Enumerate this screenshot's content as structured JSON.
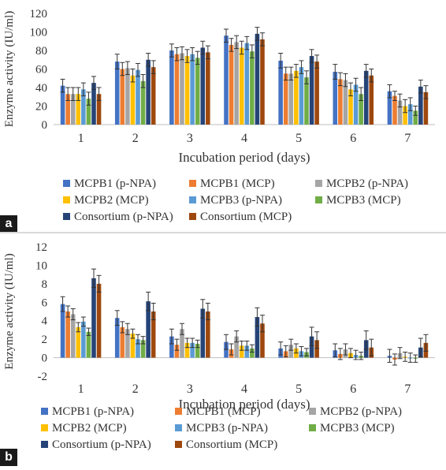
{
  "colors": {
    "MCPB1 (p-NPA)": "#4472c4",
    "MCPB1 (MCP)": "#ed7d31",
    "MCPB2 (p-NPA)": "#a5a5a5",
    "MCPB2 (MCP)": "#ffc000",
    "MCPB3 (p-NPA)": "#5b9bd5",
    "MCPB3 (MCP)": "#70ad47",
    "Consortium (p-NPA)": "#264478",
    "Consortium (MCP)": "#9e480e"
  },
  "chart_data": [
    {
      "panel_label": "a",
      "type": "bar",
      "xlabel": "Incubation period (days)",
      "ylabel": "Enzyme activity (IU/ml)",
      "ylim": [
        0,
        120
      ],
      "yticks": [
        "0",
        "20",
        "40",
        "60",
        "80",
        "100",
        "120"
      ],
      "categories": [
        "1",
        "2",
        "3",
        "4",
        "5",
        "6",
        "7"
      ],
      "grid": false,
      "legend_position": "bottom",
      "series": [
        {
          "name": "MCPB1 (p-NPA)",
          "values": [
            42,
            68,
            80,
            96,
            69,
            57,
            36
          ],
          "errors": [
            7,
            8,
            7,
            7,
            8,
            8,
            7
          ]
        },
        {
          "name": "MCPB1 (MCP)",
          "values": [
            33,
            60,
            76,
            86,
            55,
            49,
            31
          ],
          "errors": [
            7,
            7,
            7,
            7,
            7,
            7,
            5
          ]
        },
        {
          "name": "MCPB2 (p-NPA)",
          "values": [
            33,
            61,
            77,
            89,
            55,
            48,
            26
          ],
          "errors": [
            7,
            7,
            7,
            7,
            7,
            7,
            7
          ]
        },
        {
          "name": "MCPB2 (MCP)",
          "values": [
            33,
            53,
            74,
            83,
            58,
            38,
            20
          ],
          "errors": [
            7,
            7,
            7,
            7,
            7,
            7,
            7
          ]
        },
        {
          "name": "MCPB3 (p-NPA)",
          "values": [
            38,
            59,
            76,
            88,
            62,
            43,
            22
          ],
          "errors": [
            7,
            7,
            7,
            7,
            7,
            7,
            7
          ]
        },
        {
          "name": "MCPB3 (MCP)",
          "values": [
            28,
            47,
            72,
            79,
            51,
            33,
            15
          ],
          "errors": [
            7,
            7,
            7,
            7,
            7,
            7,
            5
          ]
        },
        {
          "name": "Consortium (p-NPA)",
          "values": [
            45,
            70,
            83,
            98,
            74,
            58,
            41
          ],
          "errors": [
            7,
            7,
            7,
            7,
            7,
            7,
            7
          ]
        },
        {
          "name": "Consortium (MCP)",
          "values": [
            33,
            62,
            78,
            92,
            68,
            53,
            35
          ],
          "errors": [
            7,
            7,
            7,
            7,
            7,
            7,
            7
          ]
        }
      ]
    },
    {
      "panel_label": "b",
      "type": "bar",
      "xlabel": "Incubation period (days)",
      "ylabel": "Enzyme activity (IU/ml)",
      "ylim": [
        -2,
        12
      ],
      "yticks": [
        "-2",
        "0",
        "2",
        "4",
        "6",
        "8",
        "10",
        "12"
      ],
      "categories": [
        "1",
        "2",
        "3",
        "4",
        "5",
        "6",
        "7"
      ],
      "grid": false,
      "legend_position": "bottom",
      "series": [
        {
          "name": "MCPB1 (p-NPA)",
          "values": [
            5.8,
            4.3,
            2.3,
            1.7,
            1.0,
            0.8,
            0.2
          ],
          "errors": [
            0.8,
            0.8,
            0.8,
            0.8,
            0.7,
            0.7,
            0.7
          ]
        },
        {
          "name": "MCPB1 (MCP)",
          "values": [
            5.0,
            3.3,
            1.4,
            0.9,
            0.7,
            0.4,
            -0.2
          ],
          "errors": [
            0.6,
            0.6,
            0.6,
            0.6,
            0.6,
            0.6,
            0.6
          ]
        },
        {
          "name": "MCPB2 (p-NPA)",
          "values": [
            4.7,
            3.1,
            3.1,
            2.3,
            1.4,
            0.9,
            0.5
          ],
          "errors": [
            0.6,
            0.6,
            0.6,
            0.6,
            0.6,
            0.6,
            0.6
          ]
        },
        {
          "name": "MCPB2 (MCP)",
          "values": [
            3.3,
            2.6,
            1.6,
            1.3,
            1.0,
            0.5,
            0.1
          ],
          "errors": [
            0.5,
            0.5,
            0.5,
            0.5,
            0.5,
            0.5,
            0.5
          ]
        },
        {
          "name": "MCPB3 (p-NPA)",
          "values": [
            3.9,
            2.0,
            1.6,
            1.3,
            0.7,
            0.3,
            0.0
          ],
          "errors": [
            0.5,
            0.5,
            0.5,
            0.5,
            0.5,
            0.5,
            0.5
          ]
        },
        {
          "name": "MCPB3 (MCP)",
          "values": [
            2.8,
            1.9,
            1.5,
            1.0,
            0.6,
            0.2,
            -0.1
          ],
          "errors": [
            0.4,
            0.4,
            0.4,
            0.4,
            0.4,
            0.4,
            0.4
          ]
        },
        {
          "name": "Consortium (p-NPA)",
          "values": [
            8.6,
            6.1,
            5.3,
            4.4,
            2.3,
            1.9,
            1.1
          ],
          "errors": [
            1.0,
            1.0,
            1.0,
            1.0,
            1.0,
            1.0,
            1.0
          ]
        },
        {
          "name": "Consortium (MCP)",
          "values": [
            8.0,
            5.0,
            5.0,
            3.7,
            1.9,
            1.1,
            1.6
          ],
          "errors": [
            0.9,
            0.9,
            0.9,
            0.9,
            0.9,
            0.9,
            0.9
          ]
        }
      ]
    }
  ]
}
